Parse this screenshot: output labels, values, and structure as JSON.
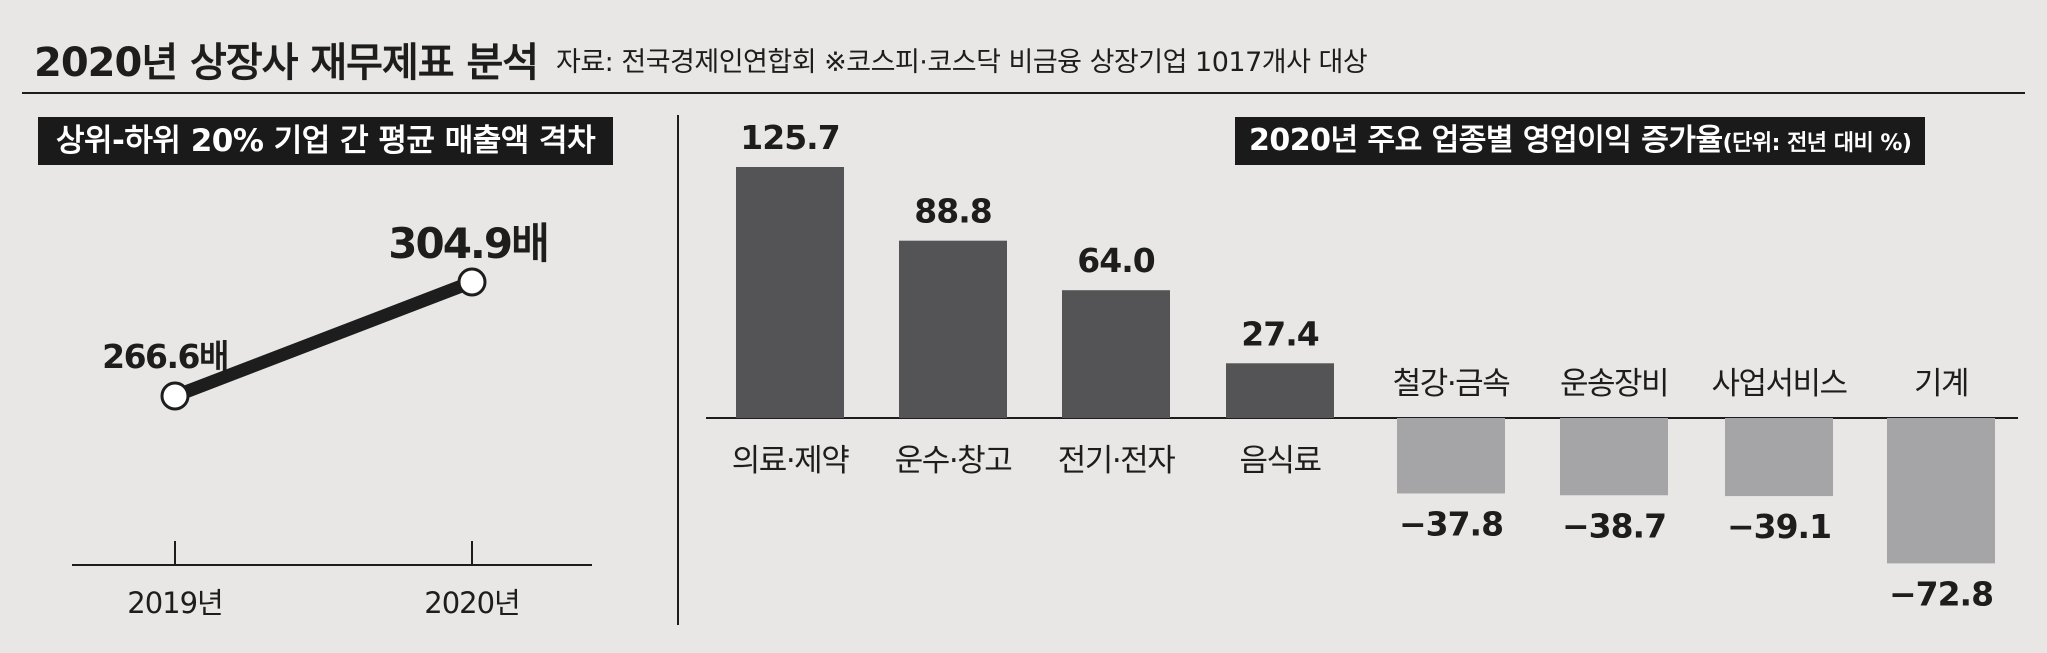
{
  "header": {
    "title": "2020년 상장사 재무제표 분석",
    "source": "자료: 전국경제인연합회 ※코스피·코스닥 비금융 상장기업 1017개사 대상"
  },
  "left_panel": {
    "label": "상위-하위 20% 기업 간 평균 매출액 격차"
  },
  "right_panel": {
    "label_main": "2020년 주요 업종별 영업이익 증가율",
    "label_unit": "(단위: 전년 대비 %)"
  },
  "colors": {
    "background": "#e8e7e5",
    "positive_bar": "#545456",
    "negative_bar": "#a5a5a7",
    "line": "#1d1d1d",
    "label_box": "#1a1a1a"
  },
  "chart_data": [
    {
      "type": "line",
      "x": [
        "2019년",
        "2020년"
      ],
      "series": [
        {
          "values": [
            266.6,
            304.9
          ],
          "labels": [
            "266.6배",
            "304.9배"
          ]
        }
      ]
    },
    {
      "type": "bar",
      "categories": [
        "의료·제약",
        "운수·창고",
        "전기·전자",
        "음식료",
        "철강·금속",
        "운송장비",
        "사업서비스",
        "기계"
      ],
      "values": [
        125.7,
        88.8,
        64.0,
        27.4,
        -37.8,
        -38.7,
        -39.1,
        -72.8
      ],
      "value_labels": [
        "125.7",
        "88.8",
        "64.0",
        "27.4",
        "−37.8",
        "−38.7",
        "−39.1",
        "−72.8"
      ]
    }
  ]
}
